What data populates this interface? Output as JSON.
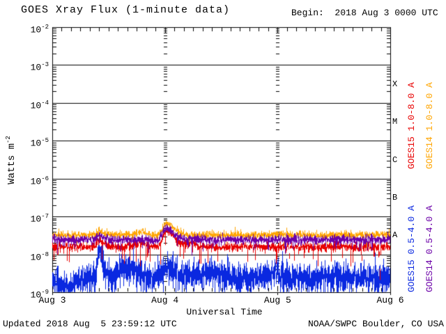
{
  "header": {
    "title": "GOES Xray Flux (1-minute data)",
    "begin": "Begin:  2018 Aug 3 0000 UTC"
  },
  "footer": {
    "updated": "Updated 2018 Aug  5 23:59:12 UTC",
    "credit": "NOAA/SWPC Boulder, CO USA"
  },
  "chart_data": {
    "type": "line",
    "title": "GOES Xray Flux (1-minute data)",
    "subtitle_begin": "Begin:  2018 Aug 3 0000 UTC",
    "xlabel": "Universal Time",
    "ylabel_base": "Watts m",
    "ylabel_exponent": "-2",
    "y_scale": "log",
    "ylim": [
      1e-09,
      0.01
    ],
    "ytick_exponents": [
      -2,
      -3,
      -4,
      -5,
      -6,
      -7,
      -8,
      -9
    ],
    "x_range_hours": [
      0,
      72
    ],
    "x_minor_tick_hours": 2,
    "xticks": [
      {
        "hour": 0,
        "label": "Aug 3"
      },
      {
        "hour": 24,
        "label": "Aug 4"
      },
      {
        "hour": 48,
        "label": "Aug 5"
      },
      {
        "hour": 72,
        "label": "Aug 6"
      }
    ],
    "grid": {
      "horizontal_decades": "solid black line at every power of ten",
      "vertical_day_boundaries_hours": [
        24,
        48
      ],
      "vertical_style": "short dashes at logarithmic minor-tick levels"
    },
    "flare_classes": [
      {
        "letter": "X",
        "mid_exponent": -3.5
      },
      {
        "letter": "M",
        "mid_exponent": -4.5
      },
      {
        "letter": "C",
        "mid_exponent": -5.5
      },
      {
        "letter": "B",
        "mid_exponent": -6.5
      },
      {
        "letter": "A",
        "mid_exponent": -7.5
      }
    ],
    "series": [
      {
        "id": "goes15_long",
        "label": "GOES15 1.0-8.0 A",
        "color": "#e80000",
        "baseline_wm2": 1.6e-08,
        "noise_decades": 0.055,
        "spikes": {
          "prob_down": 0.02,
          "depth_down": 0.5,
          "prob_up": 0.005,
          "depth_up": 0.15
        },
        "events": [
          {
            "hour": 9.8,
            "amp_decades": 0.18,
            "rise_h": 0.3,
            "decay_h": 1.2
          },
          {
            "hour": 19.0,
            "amp_decades": 0.12,
            "rise_h": 1.0,
            "decay_h": 1.0
          },
          {
            "hour": 24.3,
            "amp_decades": 0.45,
            "rise_h": 0.7,
            "decay_h": 1.6
          },
          {
            "hour": 29.5,
            "amp_decades": 0.1,
            "rise_h": 1.0,
            "decay_h": 1.0
          },
          {
            "hour": 50.5,
            "amp_decades": -0.3,
            "rise_h": 0.05,
            "decay_h": 0.08
          },
          {
            "hour": 66.0,
            "amp_decades": -0.35,
            "rise_h": 0.05,
            "decay_h": 0.08
          },
          {
            "hour": 69.8,
            "amp_decades": -0.6,
            "rise_h": 0.06,
            "decay_h": 0.1
          }
        ]
      },
      {
        "id": "goes14_long",
        "label": "GOES14 1.0-8.0 A",
        "color": "#ffa500",
        "baseline_wm2": 3.3e-08,
        "noise_decades": 0.05,
        "spikes": {
          "prob_down": 0.006,
          "depth_down": 0.3,
          "prob_up": 0.004,
          "depth_up": 0.15
        },
        "events": [
          {
            "hour": 9.8,
            "amp_decades": 0.1,
            "rise_h": 0.3,
            "decay_h": 1.2
          },
          {
            "hour": 19.0,
            "amp_decades": 0.08,
            "rise_h": 1.0,
            "decay_h": 1.0
          },
          {
            "hour": 24.3,
            "amp_decades": 0.32,
            "rise_h": 0.7,
            "decay_h": 1.6
          }
        ]
      },
      {
        "id": "goes15_short",
        "label": "GOES15 0.5-4.0 A",
        "color": "#0a28e0",
        "baseline_wm2": 2.4e-09,
        "noise_decades": 0.17,
        "floor_wm2": 1e-09,
        "spikes": {
          "prob_down": 0.06,
          "depth_down": 0.45,
          "prob_up": 0.04,
          "depth_up": 0.35
        },
        "events": [
          {
            "hour": 2.0,
            "amp_decades": -0.18,
            "rise_h": 2.5,
            "decay_h": 2.5
          },
          {
            "hour": 9.8,
            "amp_decades": 0.72,
            "rise_h": 0.2,
            "decay_h": 0.9
          },
          {
            "hour": 10.4,
            "amp_decades": 1.1,
            "rise_h": 0.03,
            "decay_h": 0.03
          },
          {
            "hour": 16.0,
            "amp_decades": 0.3,
            "rise_h": 2.0,
            "decay_h": 2.0
          },
          {
            "hour": 24.5,
            "amp_decades": 0.3,
            "rise_h": 1.5,
            "decay_h": 2.0
          },
          {
            "hour": 34.0,
            "amp_decades": 0.18,
            "rise_h": 2.0,
            "decay_h": 2.0
          },
          {
            "hour": 47.0,
            "amp_decades": 0.12,
            "rise_h": 2.0,
            "decay_h": 2.0
          }
        ]
      },
      {
        "id": "goes14_short",
        "label": "GOES14 0.5-4.0 A",
        "color": "#6b00a8",
        "baseline_wm2": 2.5e-08,
        "noise_decades": 0.06,
        "spikes": {
          "prob_down": 0.02,
          "depth_down": 0.3,
          "prob_up": 0.004,
          "depth_up": 0.1
        },
        "events": [
          {
            "hour": 9.8,
            "amp_decades": 0.1,
            "rise_h": 0.3,
            "decay_h": 1.2
          },
          {
            "hour": 24.3,
            "amp_decades": 0.3,
            "rise_h": 0.7,
            "decay_h": 1.6
          }
        ]
      }
    ],
    "draw_order": [
      "goes15_short",
      "goes15_long",
      "goes14_long",
      "goes14_short"
    ],
    "legend_note": "legend labels drawn rotated 90deg in right margin, colored to match traces"
  }
}
